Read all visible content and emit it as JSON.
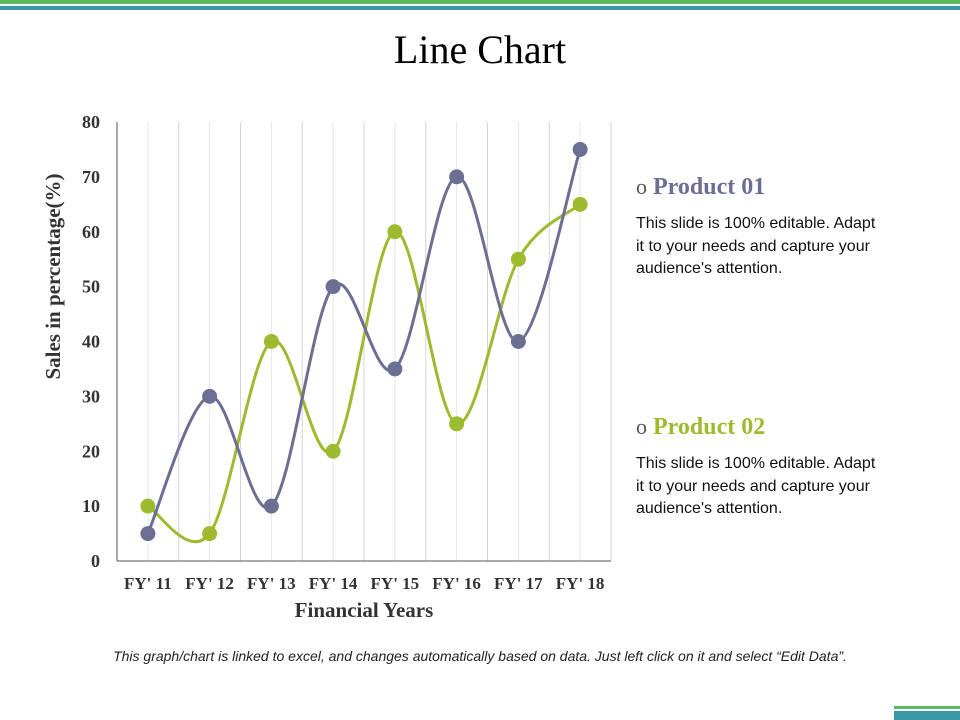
{
  "slide": {
    "title": "Line Chart",
    "footer": "This graph/chart is linked to excel, and changes automatically based on data. Just left click on it and select “Edit Data”."
  },
  "legend": [
    {
      "bullet": "o",
      "title": "Product 01",
      "color": "#6b6f94",
      "text": "This slide is 100% editable. Adapt it to your needs and capture your audience's attention."
    },
    {
      "bullet": "o",
      "title": "Product 02",
      "color": "#9dbb2e",
      "text": "This slide is 100% editable. Adapt it to your needs and capture your audience's attention."
    }
  ],
  "colors": {
    "accent_green": "#5cb85c",
    "accent_teal": "#3c98a8",
    "product_01": "#6b6f94",
    "product_02": "#9dbb2e"
  },
  "chart_data": {
    "type": "line",
    "title": "",
    "xlabel": "Financial Years",
    "ylabel": "Sales in percentage(%)",
    "categories": [
      "FY' 11",
      "FY' 12",
      "FY' 13",
      "FY' 14",
      "FY' 15",
      "FY' 16",
      "FY' 17",
      "FY' 18"
    ],
    "ylim": [
      0,
      80
    ],
    "yticks": [
      0,
      10,
      20,
      30,
      40,
      50,
      60,
      70,
      80
    ],
    "grid": "vertical",
    "smooth": true,
    "series": [
      {
        "name": "Product 01",
        "color": "#6b6f94",
        "values": [
          5,
          30,
          10,
          50,
          35,
          70,
          40,
          75
        ]
      },
      {
        "name": "Product 02",
        "color": "#9dbb2e",
        "values": [
          10,
          5,
          40,
          20,
          60,
          25,
          55,
          65
        ]
      }
    ]
  }
}
